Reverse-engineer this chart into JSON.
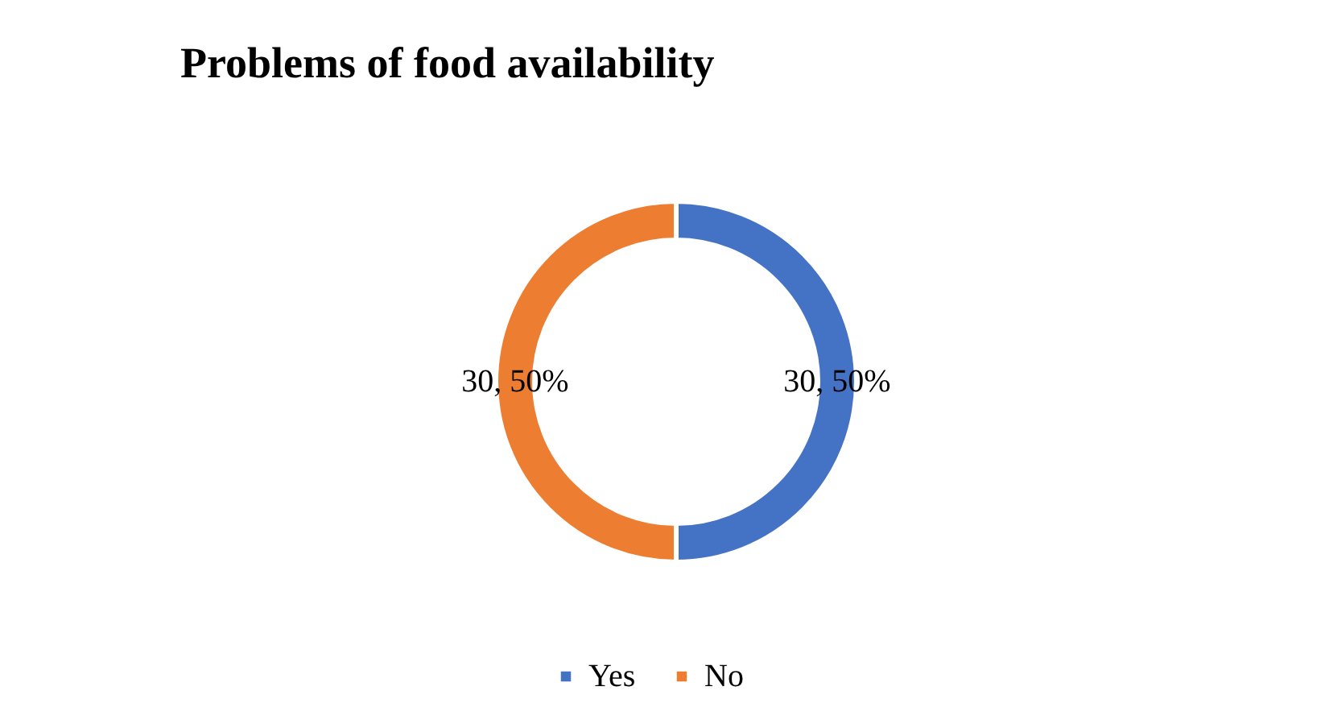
{
  "chart_data": {
    "type": "donut",
    "title": "Problems of food availability",
    "categories": [
      "Yes",
      "No"
    ],
    "values": [
      30,
      30
    ],
    "colors": [
      "#4472c4",
      "#ed7d31"
    ],
    "value_labels": [
      "30, 50%",
      "30, 50%"
    ],
    "legend": "bottom"
  }
}
